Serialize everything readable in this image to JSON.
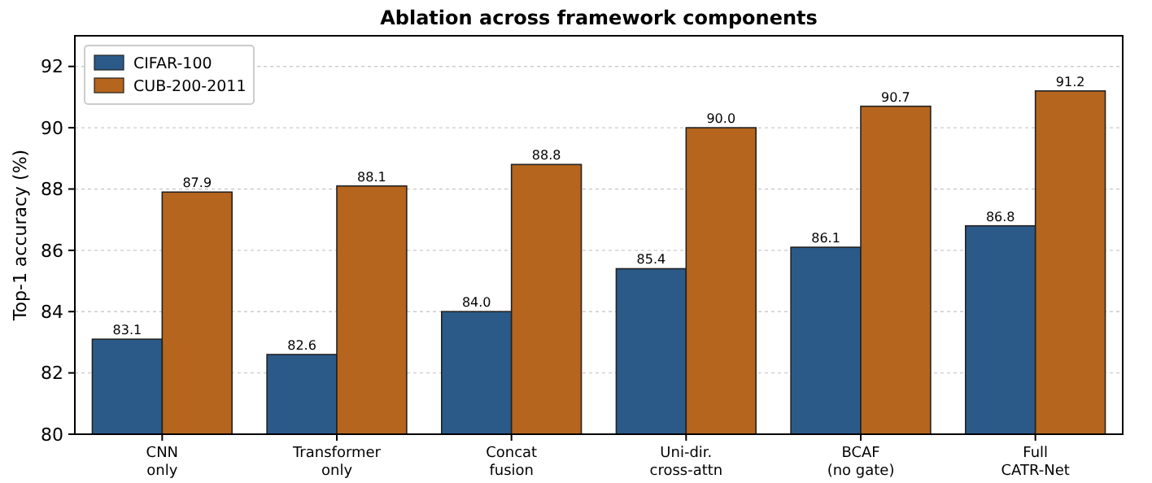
{
  "chart_data": {
    "type": "bar",
    "title": "Ablation across framework components",
    "ylabel": "Top-1 accuracy (%)",
    "categories": [
      "CNN\nonly",
      "Transformer\nonly",
      "Concat\nfusion",
      "Uni-dir.\ncross-attn",
      "BCAF\n(no gate)",
      "Full\nCATR-Net"
    ],
    "series": [
      {
        "name": "CIFAR-100",
        "color": "#2c5a88",
        "values": [
          83.1,
          82.6,
          84.0,
          85.4,
          86.1,
          86.8
        ],
        "value_labels": [
          "83.1",
          "82.6",
          "84.0",
          "85.4",
          "86.1",
          "86.8"
        ]
      },
      {
        "name": "CUB-200-2011",
        "color": "#b5651d",
        "values": [
          87.9,
          88.1,
          88.8,
          90.0,
          90.7,
          91.2
        ],
        "value_labels": [
          "87.9",
          "88.1",
          "88.8",
          "90.0",
          "90.7",
          "91.2"
        ]
      }
    ],
    "ylim": [
      80,
      93
    ],
    "yticks": [
      80,
      82,
      84,
      86,
      88,
      90,
      92
    ],
    "grid": "y",
    "legend": "top left"
  }
}
